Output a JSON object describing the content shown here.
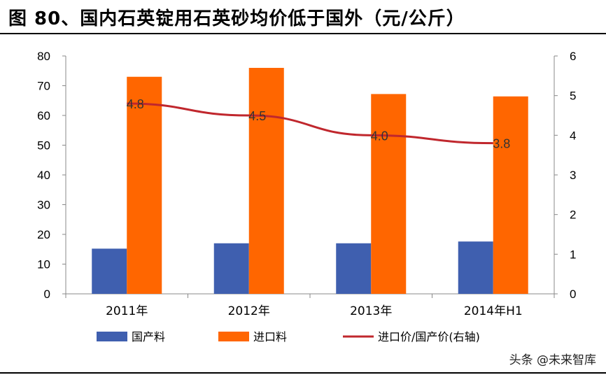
{
  "page": {
    "title": "图 80、国内石英锭用石英砂均价低于国外（元/公斤）",
    "watermark": "头条 @未来智库"
  },
  "chart_data": {
    "type": "bar",
    "categories": [
      "2011年",
      "2012年",
      "2013年",
      "2014年H1"
    ],
    "series": [
      {
        "name": "国产料",
        "kind": "bar",
        "axis": "left",
        "color": "#3F5FAF",
        "values": [
          15.2,
          17.0,
          17.0,
          17.6
        ]
      },
      {
        "name": "进口料",
        "kind": "bar",
        "axis": "left",
        "color": "#FF6600",
        "values": [
          73.0,
          76.0,
          67.2,
          66.4
        ]
      },
      {
        "name": "进口价/国产价(右轴)",
        "kind": "line",
        "axis": "right",
        "color": "#C0272D",
        "values": [
          4.8,
          4.5,
          4.0,
          3.8
        ],
        "labels": [
          "4.8",
          "4.5",
          "4.0",
          "3.8"
        ]
      }
    ],
    "y_left": {
      "min": 0,
      "max": 80,
      "ticks": [
        "0",
        "10",
        "20",
        "30",
        "40",
        "50",
        "60",
        "70",
        "80"
      ]
    },
    "y_right": {
      "min": 0,
      "max": 6,
      "ticks": [
        "0",
        "1",
        "2",
        "3",
        "4",
        "5",
        "6"
      ]
    },
    "grid": false,
    "legend_position": "bottom"
  }
}
